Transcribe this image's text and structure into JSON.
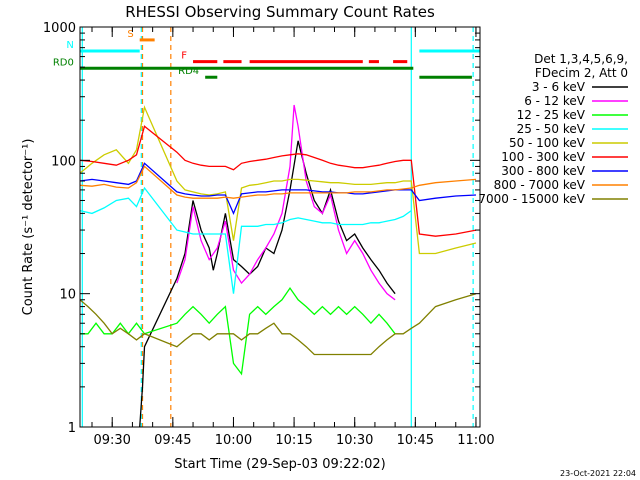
{
  "chart_data": {
    "type": "line",
    "title": "RHESSI Observing Summary Count Rates",
    "xlabel": "Start Time (29-Sep-03 09:22:02)",
    "ylabel": "Count Rate (s⁻¹ detector⁻¹)",
    "ylim": [
      1,
      1000
    ],
    "yscale": "log",
    "y_ticks": [
      "1",
      "10",
      "100",
      "1000"
    ],
    "x_ticks": [
      "09:30",
      "09:45",
      "10:00",
      "10:15",
      "10:30",
      "10:45",
      "11:00"
    ],
    "x_tick_minutes": [
      30,
      45,
      60,
      75,
      90,
      105,
      120
    ],
    "xlim_minutes": [
      22.03,
      121
    ],
    "timestamp": "23-Oct-2021 22:04",
    "legend_header": [
      "Det 1,3,4,5,6,9,",
      "FDecim 2, Att 0"
    ],
    "legend_placement": "right",
    "series": [
      {
        "name": "3 - 6 keV",
        "color": "#000000",
        "x": [
          36.8,
          37.5,
          38.0,
          46,
          48,
          50,
          52,
          54,
          55,
          56,
          58,
          60,
          62,
          64,
          66,
          68,
          70,
          72,
          74,
          76,
          78,
          80,
          82,
          84,
          86,
          88,
          90,
          92,
          94,
          96,
          98,
          100
        ],
        "y": [
          1,
          2,
          4,
          13,
          20,
          50,
          30,
          22,
          15,
          20,
          40,
          18,
          16,
          14,
          16,
          22,
          20,
          30,
          60,
          140,
          80,
          50,
          40,
          60,
          35,
          25,
          28,
          22,
          18,
          15,
          12,
          10
        ]
      },
      {
        "name": "6 - 12 keV",
        "color": "#ff00ff",
        "x": [
          46,
          48,
          50,
          52,
          54,
          56,
          58,
          60,
          62,
          64,
          66,
          68,
          70,
          72,
          74,
          75,
          76,
          78,
          80,
          82,
          84,
          86,
          88,
          90,
          92,
          94,
          96,
          98,
          100
        ],
        "y": [
          12,
          18,
          45,
          25,
          18,
          22,
          35,
          15,
          12,
          14,
          18,
          22,
          28,
          40,
          90,
          260,
          180,
          70,
          45,
          40,
          55,
          30,
          20,
          25,
          20,
          15,
          12,
          10,
          9
        ]
      },
      {
        "name": "12 - 25 keV",
        "color": "#00ff00",
        "x": [
          22,
          24,
          26,
          28,
          30,
          32,
          34,
          36,
          38,
          46,
          48,
          50,
          52,
          54,
          56,
          58,
          60,
          62,
          64,
          66,
          68,
          70,
          72,
          74,
          76,
          78,
          80,
          82,
          84,
          86,
          88,
          90,
          92,
          94,
          96,
          98,
          100
        ],
        "y": [
          5,
          5,
          6,
          5,
          5,
          6,
          5,
          6,
          5,
          6,
          7,
          8,
          7,
          6,
          7,
          8,
          3,
          2.5,
          7,
          8,
          7,
          8,
          9,
          11,
          9,
          8,
          7,
          8,
          7,
          8,
          7,
          8,
          7,
          6,
          7,
          6,
          5
        ]
      },
      {
        "name": "25 - 50 keV",
        "color": "#00ffff",
        "x": [
          22,
          25,
          28,
          31,
          34,
          36,
          38,
          46,
          48,
          50,
          52,
          54,
          56,
          58,
          60,
          62,
          64,
          66,
          68,
          70,
          72,
          74,
          76,
          78,
          80,
          82,
          84,
          86,
          88,
          90,
          92,
          94,
          96,
          98,
          100,
          102,
          104
        ],
        "y": [
          42,
          40,
          44,
          50,
          52,
          45,
          62,
          30,
          29,
          28,
          28,
          28,
          28,
          28,
          10,
          32,
          32,
          32,
          33,
          33,
          34,
          36,
          37,
          36,
          35,
          34,
          34,
          33,
          33,
          33,
          33,
          34,
          34,
          35,
          36,
          38,
          42
        ]
      },
      {
        "name": "50 - 100 keV",
        "color": "#cccc00",
        "x": [
          22,
          25,
          28,
          31,
          34,
          36,
          38,
          46,
          48,
          50,
          52,
          54,
          56,
          58,
          60,
          62,
          64,
          66,
          68,
          70,
          72,
          74,
          76,
          78,
          80,
          82,
          84,
          86,
          88,
          90,
          92,
          94,
          96,
          98,
          100,
          102,
          104,
          106,
          110,
          115,
          120
        ],
        "y": [
          80,
          95,
          110,
          120,
          95,
          120,
          250,
          70,
          60,
          58,
          56,
          55,
          56,
          58,
          25,
          62,
          65,
          66,
          68,
          70,
          70,
          72,
          72,
          71,
          70,
          69,
          68,
          68,
          67,
          66,
          66,
          66,
          67,
          68,
          68,
          70,
          70,
          20,
          20,
          22,
          24
        ]
      },
      {
        "name": "100 - 300 keV",
        "color": "#ff0000",
        "x": [
          22,
          25,
          28,
          31,
          34,
          36,
          38,
          46,
          48,
          50,
          52,
          54,
          56,
          58,
          60,
          62,
          64,
          66,
          68,
          70,
          72,
          74,
          76,
          78,
          80,
          82,
          84,
          86,
          88,
          90,
          92,
          94,
          96,
          98,
          100,
          102,
          104,
          106,
          110,
          115,
          120
        ],
        "y": [
          100,
          98,
          95,
          92,
          100,
          110,
          180,
          115,
          100,
          95,
          92,
          90,
          90,
          90,
          85,
          95,
          98,
          100,
          102,
          105,
          108,
          110,
          112,
          110,
          105,
          100,
          95,
          92,
          90,
          88,
          88,
          90,
          92,
          95,
          98,
          100,
          100,
          28,
          27,
          28,
          30
        ]
      },
      {
        "name": "300 - 800 keV",
        "color": "#0000ff",
        "x": [
          22,
          25,
          28,
          31,
          34,
          36,
          38,
          46,
          48,
          50,
          52,
          54,
          56,
          58,
          60,
          62,
          64,
          66,
          68,
          70,
          72,
          74,
          76,
          78,
          80,
          82,
          84,
          86,
          88,
          90,
          92,
          94,
          96,
          98,
          100,
          102,
          104,
          106,
          110,
          115,
          120
        ],
        "y": [
          70,
          72,
          70,
          68,
          66,
          70,
          95,
          58,
          56,
          55,
          54,
          54,
          55,
          55,
          40,
          56,
          57,
          58,
          58,
          59,
          60,
          60,
          60,
          60,
          59,
          58,
          58,
          57,
          57,
          56,
          56,
          57,
          58,
          59,
          60,
          60,
          60,
          50,
          52,
          54,
          55
        ]
      },
      {
        "name": "800 - 7000 keV",
        "color": "#ff8000",
        "x": [
          22,
          25,
          28,
          31,
          34,
          36,
          38,
          46,
          48,
          50,
          52,
          54,
          56,
          58,
          60,
          62,
          64,
          66,
          68,
          70,
          72,
          74,
          76,
          78,
          80,
          82,
          84,
          86,
          88,
          90,
          92,
          94,
          96,
          98,
          100,
          102,
          104,
          106,
          110,
          115,
          120
        ],
        "y": [
          65,
          64,
          66,
          63,
          62,
          68,
          90,
          55,
          53,
          52,
          52,
          52,
          52,
          53,
          52,
          53,
          54,
          55,
          55,
          56,
          56,
          57,
          57,
          57,
          57,
          57,
          57,
          57,
          57,
          58,
          58,
          58,
          59,
          60,
          60,
          61,
          62,
          65,
          68,
          70,
          72
        ]
      },
      {
        "name": "7000 - 15000 keV",
        "color": "#808000",
        "x": [
          22,
          24,
          26,
          28,
          30,
          32,
          34,
          36,
          38,
          46,
          48,
          50,
          52,
          54,
          56,
          58,
          60,
          62,
          64,
          66,
          68,
          70,
          72,
          74,
          76,
          78,
          80,
          82,
          84,
          86,
          88,
          90,
          92,
          94,
          96,
          98,
          100,
          102,
          104,
          106,
          110,
          115,
          120
        ],
        "y": [
          9,
          8,
          7,
          6,
          5,
          5.5,
          5,
          4.5,
          5,
          4,
          4.5,
          5,
          5,
          4.5,
          5,
          5,
          5,
          4.5,
          5,
          5,
          5.5,
          6,
          5,
          5,
          4.5,
          4,
          3.5,
          3.5,
          3.5,
          3.5,
          3.5,
          3.5,
          3.5,
          3.5,
          4,
          4.5,
          5,
          5,
          5.5,
          6,
          8,
          9,
          10
        ]
      }
    ],
    "flag_bars": [
      {
        "label": "S",
        "color": "#ff8000",
        "start": 36.8,
        "end": 40.5,
        "y": 800
      },
      {
        "label": "N",
        "color": "#00ffff",
        "start": 22,
        "end": 36.8,
        "y": 660
      },
      {
        "label": "",
        "color": "#00ffff",
        "start": 106,
        "end": 121,
        "y": 660
      },
      {
        "label": "F",
        "color": "#ff0000",
        "start": 50,
        "end": 56,
        "y": 550
      },
      {
        "label": "",
        "color": "#ff0000",
        "start": 57.5,
        "end": 62,
        "y": 550
      },
      {
        "label": "",
        "color": "#ff0000",
        "start": 64,
        "end": 92,
        "y": 550
      },
      {
        "label": "",
        "color": "#ff0000",
        "start": 93.5,
        "end": 96,
        "y": 550
      },
      {
        "label": "",
        "color": "#ff0000",
        "start": 99.5,
        "end": 103,
        "y": 550
      },
      {
        "label": "RD0",
        "color": "#008000",
        "start": 22,
        "end": 104.5,
        "y": 490
      },
      {
        "label": "",
        "color": "#008000",
        "start": 106,
        "end": 119,
        "y": 420
      },
      {
        "label": "RD4",
        "color": "#008000",
        "start": 53,
        "end": 56,
        "y": 420
      }
    ],
    "vertical_markers": [
      {
        "minute": 22.6,
        "color": "#00ffff",
        "style": "solid"
      },
      {
        "minute": 37.2,
        "color": "#00ffff",
        "style": "dashed"
      },
      {
        "minute": 37.5,
        "color": "#ff8000",
        "style": "dashed"
      },
      {
        "minute": 44.5,
        "color": "#ff8000",
        "style": "dashed"
      },
      {
        "minute": 104.0,
        "color": "#00ffff",
        "style": "solid"
      },
      {
        "minute": 119.3,
        "color": "#00ffff",
        "style": "dashed"
      }
    ]
  }
}
